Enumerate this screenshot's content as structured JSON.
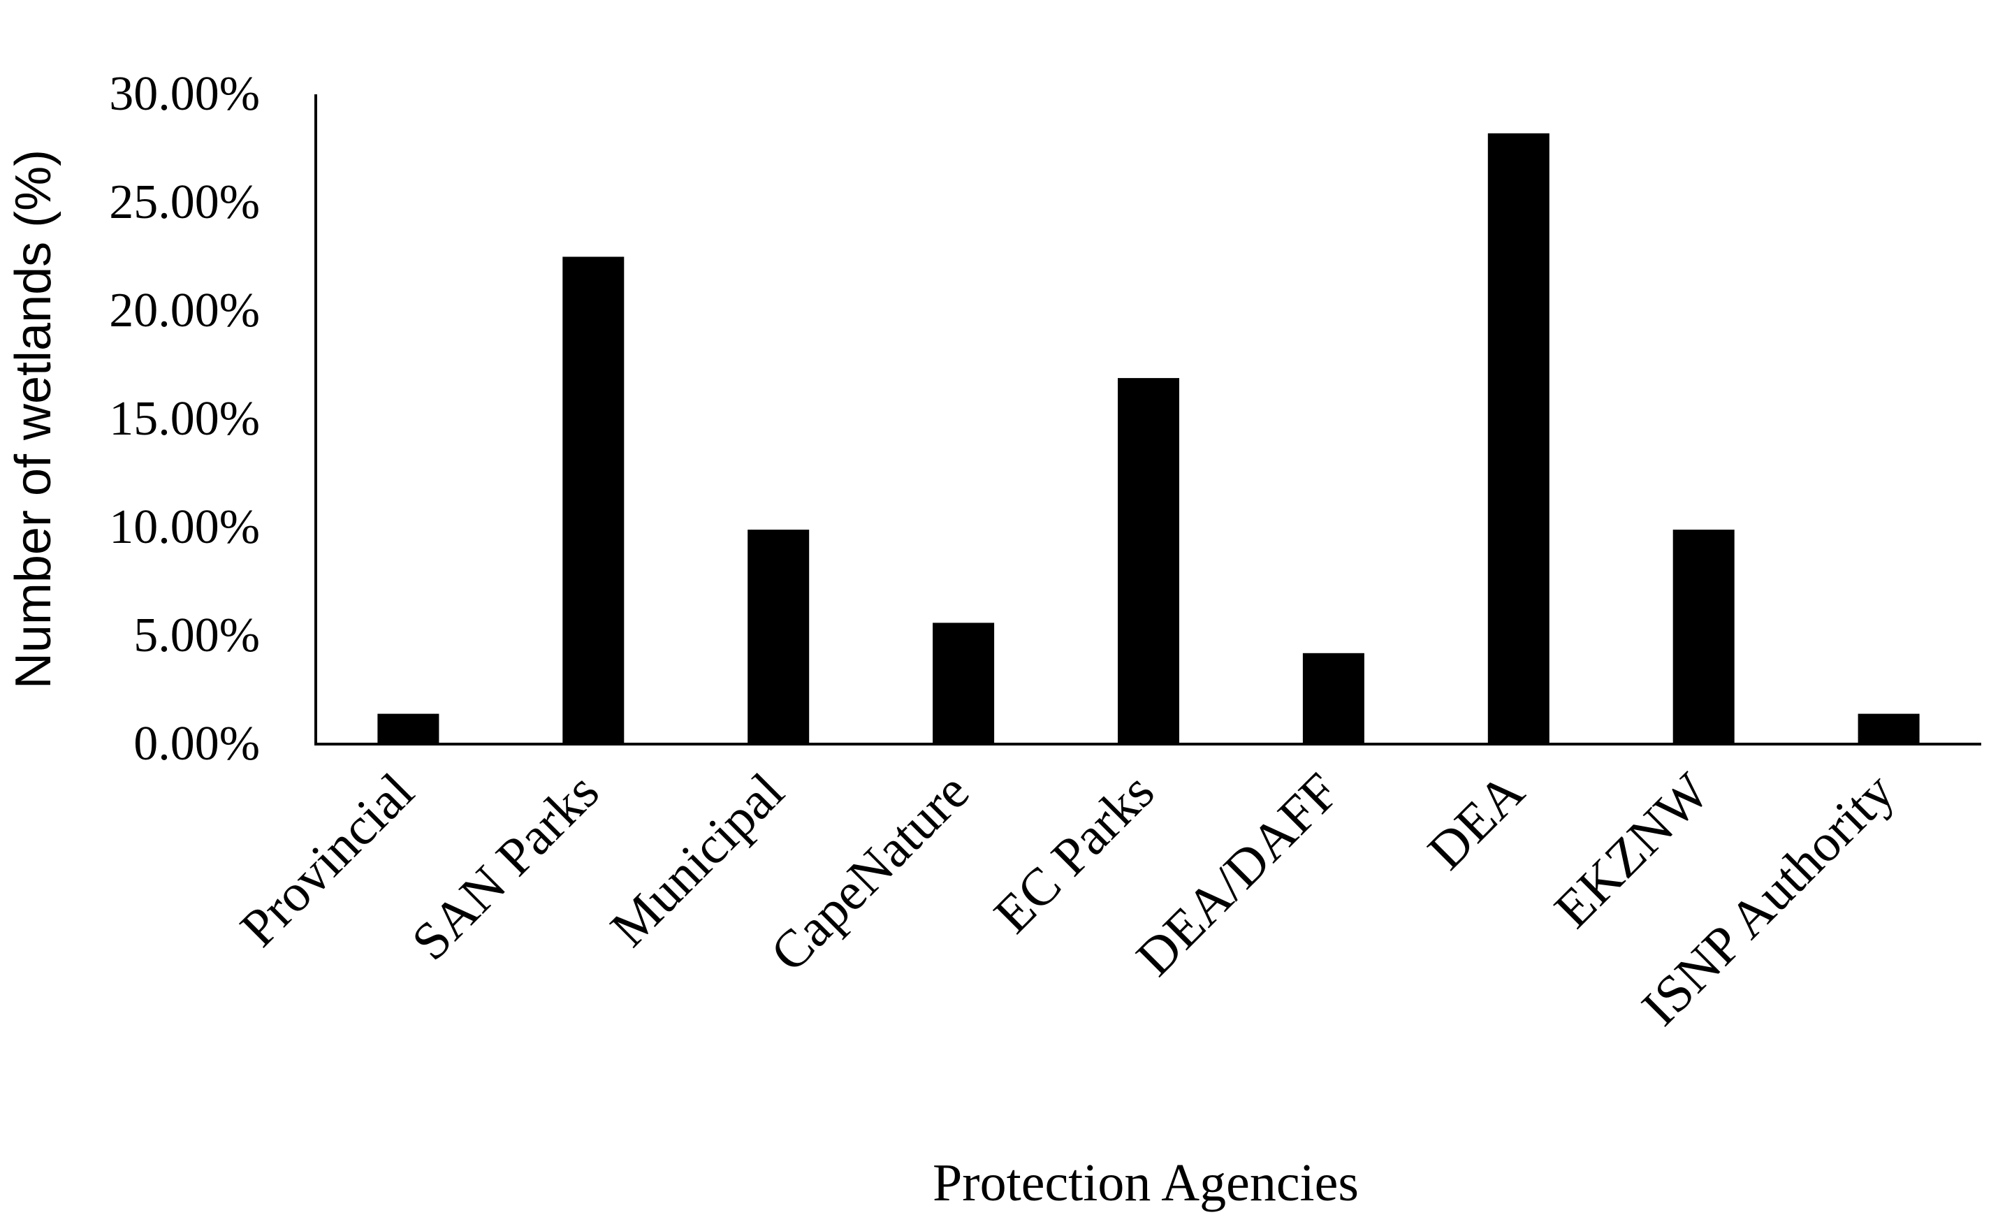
{
  "chart_data": {
    "type": "bar",
    "title": "",
    "xlabel": "Protection Agencies",
    "ylabel": "Number of wetlands (%)",
    "categories": [
      "Provincial",
      "SAN Parks",
      "Municipal",
      "CapeNature",
      "EC Parks",
      "DEA/DAFF",
      "DEA",
      "EKZNW",
      "ISNP Authority"
    ],
    "values": [
      1.4,
      22.5,
      9.9,
      5.6,
      16.9,
      4.2,
      28.2,
      9.9,
      1.4
    ],
    "ylim": [
      0,
      30
    ],
    "yticks": [
      0,
      5,
      10,
      15,
      20,
      25,
      30
    ],
    "ytick_labels": [
      "0.00%",
      "5.00%",
      "10.00%",
      "15.00%",
      "20.00%",
      "25.00%",
      "30.00%"
    ],
    "grid": false,
    "legend": "none",
    "bar_color": "#000000"
  }
}
